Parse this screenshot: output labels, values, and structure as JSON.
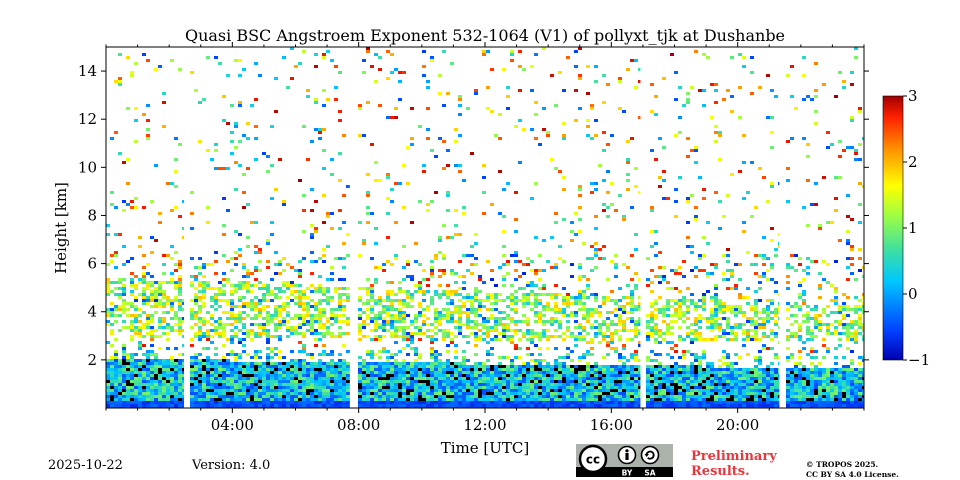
{
  "chart_data": {
    "type": "heatmap",
    "title": "Quasi BSC Angstroem Exponent 532-1064 (V1) of pollyxt_tjk at Dushanbe",
    "xlabel": "Time [UTC]",
    "ylabel": "Height [km]",
    "xlim_hours": [
      0,
      24
    ],
    "ylim_km": [
      0,
      15
    ],
    "x_ticks": [
      {
        "value": 4,
        "label": "04:00"
      },
      {
        "value": 8,
        "label": "08:00"
      },
      {
        "value": 12,
        "label": "12:00"
      },
      {
        "value": 16,
        "label": "16:00"
      },
      {
        "value": 20,
        "label": "20:00"
      }
    ],
    "y_ticks": [
      {
        "value": 2,
        "label": "2"
      },
      {
        "value": 4,
        "label": "4"
      },
      {
        "value": 6,
        "label": "6"
      },
      {
        "value": 8,
        "label": "8"
      },
      {
        "value": 10,
        "label": "10"
      },
      {
        "value": 12,
        "label": "12"
      },
      {
        "value": 14,
        "label": "14"
      }
    ],
    "colorbar": {
      "range": [
        -1,
        3
      ],
      "colormap": "jet",
      "ticks": [
        {
          "value": 3,
          "label": "3"
        },
        {
          "value": 2,
          "label": "2"
        },
        {
          "value": 1,
          "label": "1"
        },
        {
          "value": 0,
          "label": "0"
        },
        {
          "value": -1,
          "label": "−1"
        }
      ]
    },
    "data_gaps_hours": [
      2.55,
      7.8,
      17.0,
      21.4
    ],
    "layers": [
      {
        "name_visible": false,
        "top_km_start": 2.1,
        "top_km_end": 1.7,
        "value_range": [
          -0.5,
          1.0
        ]
      },
      {
        "name_visible": false,
        "band_km_start": [
          3.0,
          5.5
        ],
        "band_km_end": [
          2.8,
          4.3
        ],
        "value_range": [
          0.5,
          2.0
        ]
      }
    ]
  },
  "footer": {
    "date": "2025-10-22",
    "version": "Version: 4.0",
    "preliminary_line1": "Preliminary",
    "preliminary_line2": "Results.",
    "copyright_line1": "© TROPOS 2025.",
    "copyright_line2": "CC BY SA 4.0 License.",
    "license_badge": {
      "text_cc": "cc",
      "text_by": "BY",
      "text_sa": "SA",
      "icons": [
        "cc-icon",
        "person-icon",
        "share-alike-icon"
      ]
    }
  },
  "colors": {
    "accent": "#e8383d",
    "background": "#ffffff"
  }
}
